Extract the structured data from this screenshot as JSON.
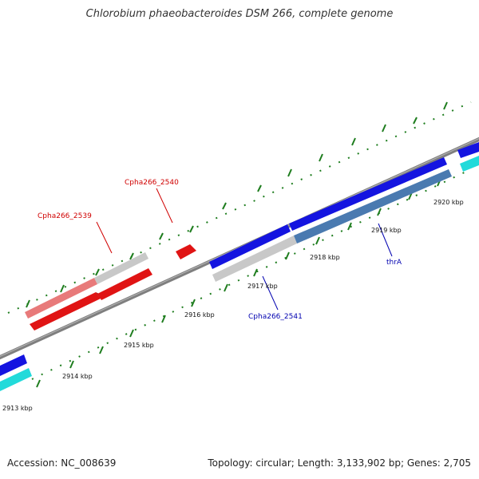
{
  "title": "Chlorobium phaeobacteroides DSM 266, complete genome",
  "accession": "Accession: NC_008639",
  "summary": "Topology: circular; Length: 3,133,902 bp; Genes: 2,705",
  "colors": {
    "backbone": "#7f7f7f",
    "tick": "#1e7d1e",
    "forward_gene": "#1414e0",
    "reverse_gene": "#e01414",
    "cds_light_red": "#e87a7a",
    "gray_feature": "#c8c8c8",
    "cyan_feature": "#22dada",
    "steel_feature": "#4a7ab0",
    "label_red": "#d00000",
    "label_blue": "#0000b0"
  },
  "ticks": [
    {
      "label": "2913 kbp"
    },
    {
      "label": "2914 kbp"
    },
    {
      "label": "2915 kbp"
    },
    {
      "label": "2916 kbp"
    },
    {
      "label": "2917 kbp"
    },
    {
      "label": "2918 kbp"
    },
    {
      "label": "2919 kbp"
    },
    {
      "label": "2920 kbp"
    }
  ],
  "gene_labels": [
    {
      "text": "Cpha266_2539",
      "color": "red"
    },
    {
      "text": "Cpha266_2540",
      "color": "red"
    },
    {
      "text": "Cpha266_2541",
      "color": "blue"
    },
    {
      "text": "thrA",
      "color": "blue"
    }
  ]
}
